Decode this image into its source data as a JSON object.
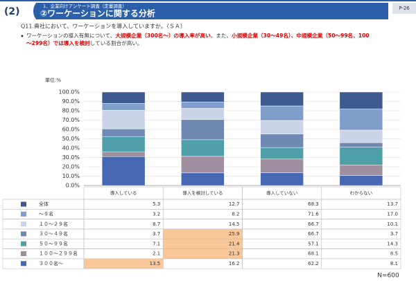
{
  "header": {
    "section": "(2)",
    "subtitle": "1．企業向けアンケート調査（定量調査）",
    "title": "②ワーケーションに関する分析",
    "page": "P-26"
  },
  "question": "Q11.貴社において、ワーケーションを導入していますか。（ＳＡ）",
  "bullet": {
    "lines": [
      [
        {
          "text": "ワーケーションの導入有無について、",
          "red": false
        },
        {
          "text": "大規模企業（300名～）の導入率が高い",
          "red": true
        },
        {
          "text": "。また、",
          "red": false
        },
        {
          "text": "小規模企業（30～49名）、中規模企業（50～99名、100",
          "red": true
        }
      ],
      [
        {
          "text": "～299名）では導入を検討",
          "red": true
        },
        {
          "text": "している割合が高い。",
          "red": false
        }
      ]
    ]
  },
  "chart_data": {
    "type": "bar",
    "stack": "percent",
    "unit_label": "単位:%",
    "note": "N=600",
    "categories": [
      "導入している",
      "導入を検討している",
      "導入していない",
      "わからない"
    ],
    "ylim": [
      0,
      100
    ],
    "yticks": [
      {
        "value": 0,
        "label": "0.0%"
      },
      {
        "value": 10,
        "label": "10.0%"
      },
      {
        "value": 20,
        "label": "20.0%"
      },
      {
        "value": 30,
        "label": "30.0%"
      },
      {
        "value": 40,
        "label": "40.0%"
      },
      {
        "value": 50,
        "label": "50.0%"
      },
      {
        "value": 60,
        "label": "60.0%"
      },
      {
        "value": 70,
        "label": "70.0%"
      },
      {
        "value": 80,
        "label": "80.0%"
      },
      {
        "value": 90,
        "label": "90.0%"
      },
      {
        "value": 100,
        "label": "100.0%"
      }
    ],
    "grid": true,
    "highlight_color": "#fac79a",
    "series": [
      {
        "name": "全体",
        "color": "#3e5a8e",
        "values": [
          5.3,
          12.7,
          68.3,
          13.7
        ],
        "highlight": [
          false,
          false,
          false,
          false
        ]
      },
      {
        "name": "～９名",
        "color": "#819ecb",
        "values": [
          3.2,
          8.2,
          71.6,
          17.0
        ],
        "value_labels": [
          "3.2",
          "8.2",
          "71.6",
          "17.0"
        ],
        "highlight": [
          false,
          false,
          false,
          false
        ]
      },
      {
        "name": "１０～２９名",
        "color": "#c9d4e8",
        "values": [
          8.7,
          14.5,
          66.7,
          10.1
        ],
        "highlight": [
          false,
          false,
          false,
          false
        ]
      },
      {
        "name": "３０～４９名",
        "color": "#7089b3",
        "values": [
          3.7,
          25.9,
          66.7,
          3.7
        ],
        "highlight": [
          false,
          true,
          false,
          false
        ]
      },
      {
        "name": "５０～９９名",
        "color": "#4e9fa8",
        "values": [
          7.1,
          21.4,
          57.1,
          14.3
        ],
        "highlight": [
          false,
          true,
          false,
          false
        ]
      },
      {
        "name": "１００～２９９名",
        "color": "#a0909f",
        "values": [
          2.1,
          21.3,
          68.1,
          8.5
        ],
        "highlight": [
          false,
          true,
          false,
          false
        ]
      },
      {
        "name": "３００名～",
        "color": "#4668b3",
        "values": [
          13.5,
          16.2,
          62.2,
          8.1
        ],
        "highlight": [
          true,
          false,
          false,
          false
        ]
      }
    ]
  }
}
